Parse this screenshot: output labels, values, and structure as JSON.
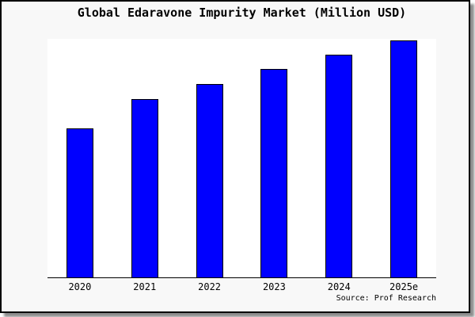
{
  "frame": {
    "background_color": "#f8f8f8",
    "border_color": "#000000"
  },
  "chart_data": {
    "type": "bar",
    "title": "Global Edaravone Impurity Market (Million USD)",
    "categories": [
      "2020",
      "2021",
      "2022",
      "2023",
      "2024",
      "2025e"
    ],
    "values_relative_pct": [
      62.9,
      75.3,
      81.6,
      88.0,
      94.0,
      100.0
    ],
    "values_note": "No y-axis ticks, labels or gridlines are shown; values are bar heights relative to the tallest (2025e) bar = 100.",
    "xlabel": "",
    "ylabel": "",
    "grid": false,
    "legend": "none",
    "bar_color": "#0000ff",
    "bar_border_color": "#000000",
    "plot_background": "#ffffff",
    "source_label": "Source: Prof Research"
  }
}
